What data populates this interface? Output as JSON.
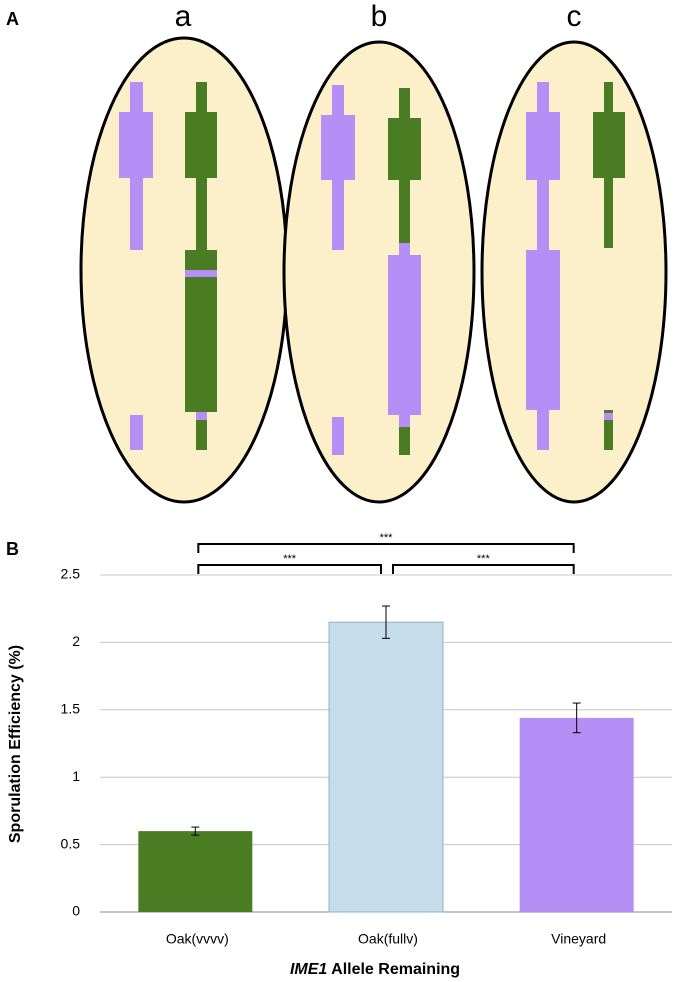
{
  "panel_labels": [
    "A",
    "B"
  ],
  "diagram": {
    "labels": [
      "a",
      "b",
      "c"
    ]
  },
  "chart_data": {
    "type": "bar",
    "ylabel": "Sporulation Efficiency (%)",
    "xlabel": {
      "italic": "IME1",
      "rest": "Allele Remaining"
    },
    "categories": [
      "Oak(vvvv)",
      "Oak(fullv)",
      "Vineyard"
    ],
    "values": [
      0.6,
      2.15,
      1.44
    ],
    "errors": [
      0.03,
      0.12,
      0.11
    ],
    "colors": [
      "#4a7c23",
      "#c5dde8",
      "#b48ff5"
    ],
    "ylim": [
      0,
      2.5
    ],
    "yticks": [
      0,
      0.5,
      1,
      1.5,
      2,
      2.5
    ],
    "grid": true,
    "significance": [
      {
        "pair": [
          0,
          1
        ],
        "label": "***"
      },
      {
        "pair": [
          1,
          2
        ],
        "label": "***"
      },
      {
        "pair": [
          0,
          2
        ],
        "label": "***"
      }
    ]
  }
}
